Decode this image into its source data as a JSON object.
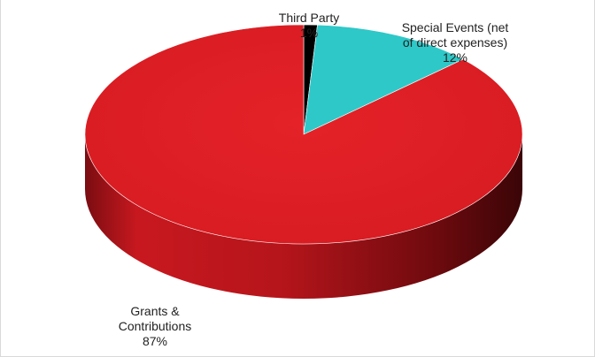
{
  "chart_data": {
    "type": "pie",
    "title": "",
    "slices": [
      {
        "name": "Third Party",
        "value": 1,
        "label_line1": "Third Party",
        "label_line2": "",
        "pct_label": "1%",
        "color": "#000000"
      },
      {
        "name": "Special Events (net of direct expenses)",
        "value": 12,
        "label_line1": "Special Events (net",
        "label_line2": "of direct expenses)",
        "pct_label": "12%",
        "color": "#2ec8c8"
      },
      {
        "name": "Grants & Contributions",
        "value": 87,
        "label_line1": "Grants &",
        "label_line2": "Contributions",
        "pct_label": "87%",
        "color": "#e21e26"
      }
    ],
    "style": "3d",
    "legend": "none"
  }
}
